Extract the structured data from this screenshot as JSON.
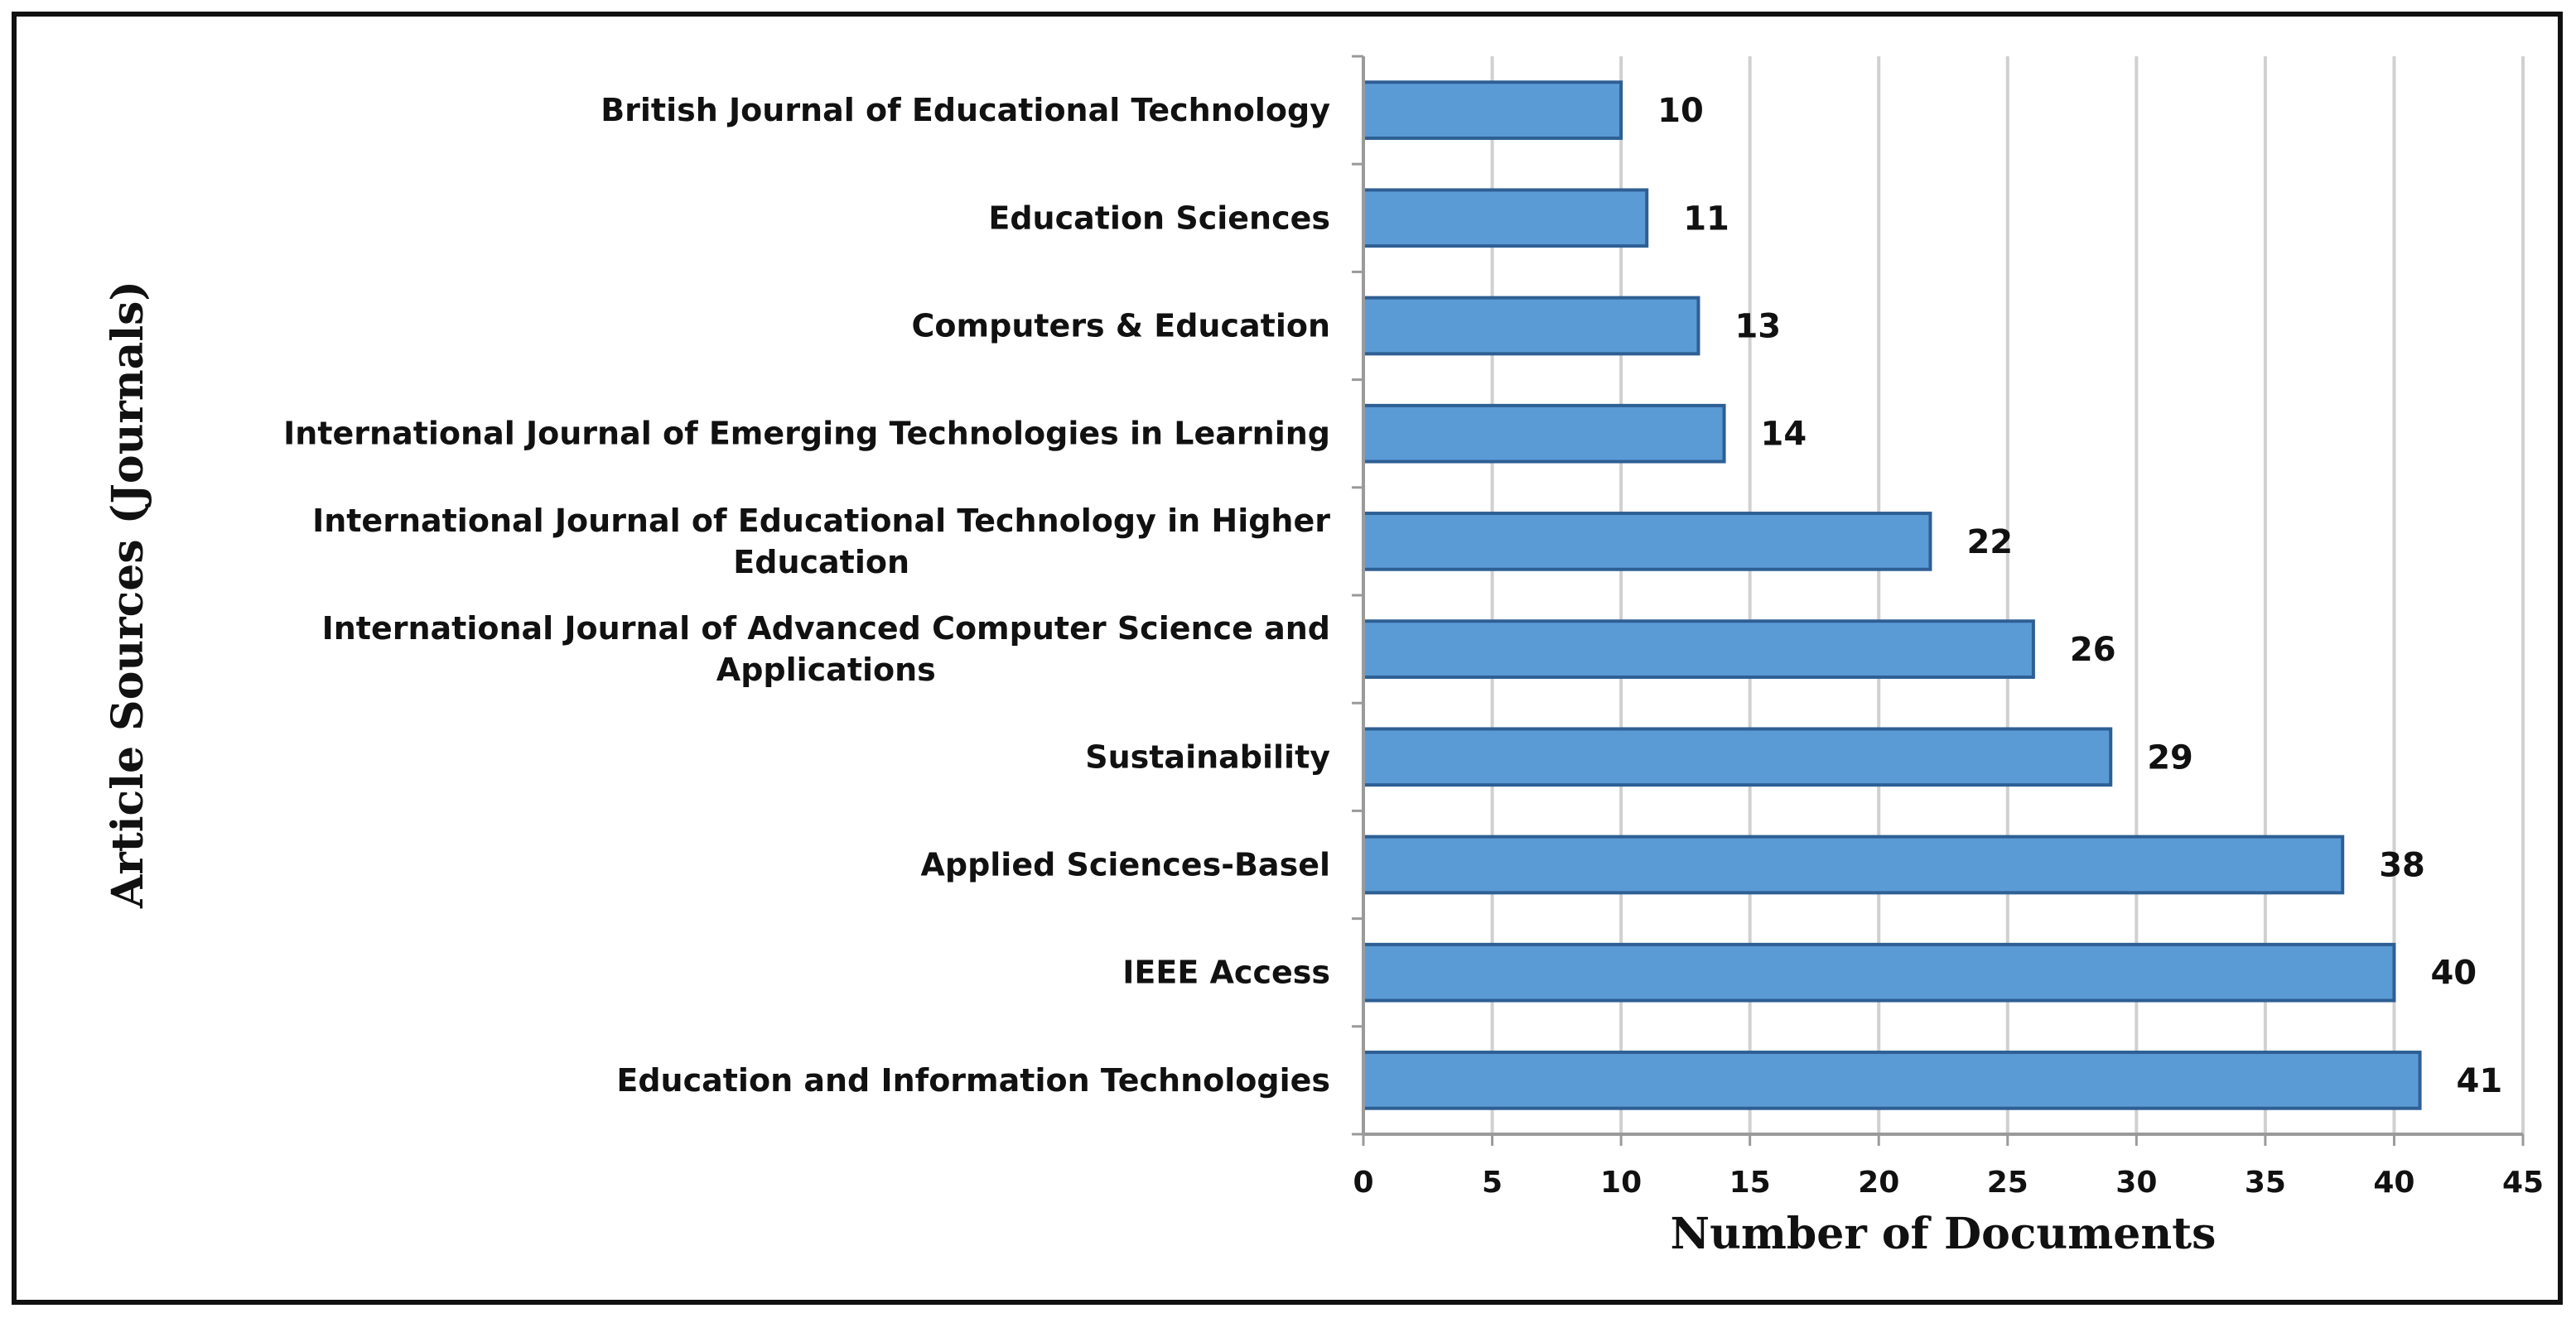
{
  "chart_data": {
    "type": "bar",
    "orientation": "horizontal",
    "categories": [
      "British Journal of Educational Technology",
      "Education Sciences",
      "Computers & Education",
      "International Journal of Emerging Technologies in Learning",
      "International Journal of Educational Technology in Higher Education",
      "International Journal of Advanced Computer Science and Applications",
      "Sustainability",
      "Applied Sciences-Basel",
      "IEEE Access",
      "Education and Information Technologies"
    ],
    "category_lines": [
      [
        "British Journal of Educational Technology"
      ],
      [
        "Education Sciences"
      ],
      [
        "Computers & Education"
      ],
      [
        "International Journal of Emerging Technologies in Learning"
      ],
      [
        "International Journal of Educational Technology in Higher",
        "Education"
      ],
      [
        "International Journal of Advanced Computer Science and",
        "Applications"
      ],
      [
        "Sustainability"
      ],
      [
        "Applied Sciences-Basel"
      ],
      [
        "IEEE Access"
      ],
      [
        "Education and Information Technologies"
      ]
    ],
    "values": [
      10,
      11,
      13,
      14,
      22,
      26,
      29,
      38,
      40,
      41
    ],
    "title": "",
    "xlabel": "Number of Documents",
    "ylabel": "Article Sources (Journals)",
    "xlim": [
      0,
      45
    ],
    "xticks": [
      0,
      5,
      10,
      15,
      20,
      25,
      30,
      35,
      40,
      45
    ],
    "grid": "vertical",
    "legend": "none",
    "bar_color": "#5b9bd5",
    "bar_edge_color": "#2e5f94",
    "grid_color": "#d0d0d0"
  }
}
